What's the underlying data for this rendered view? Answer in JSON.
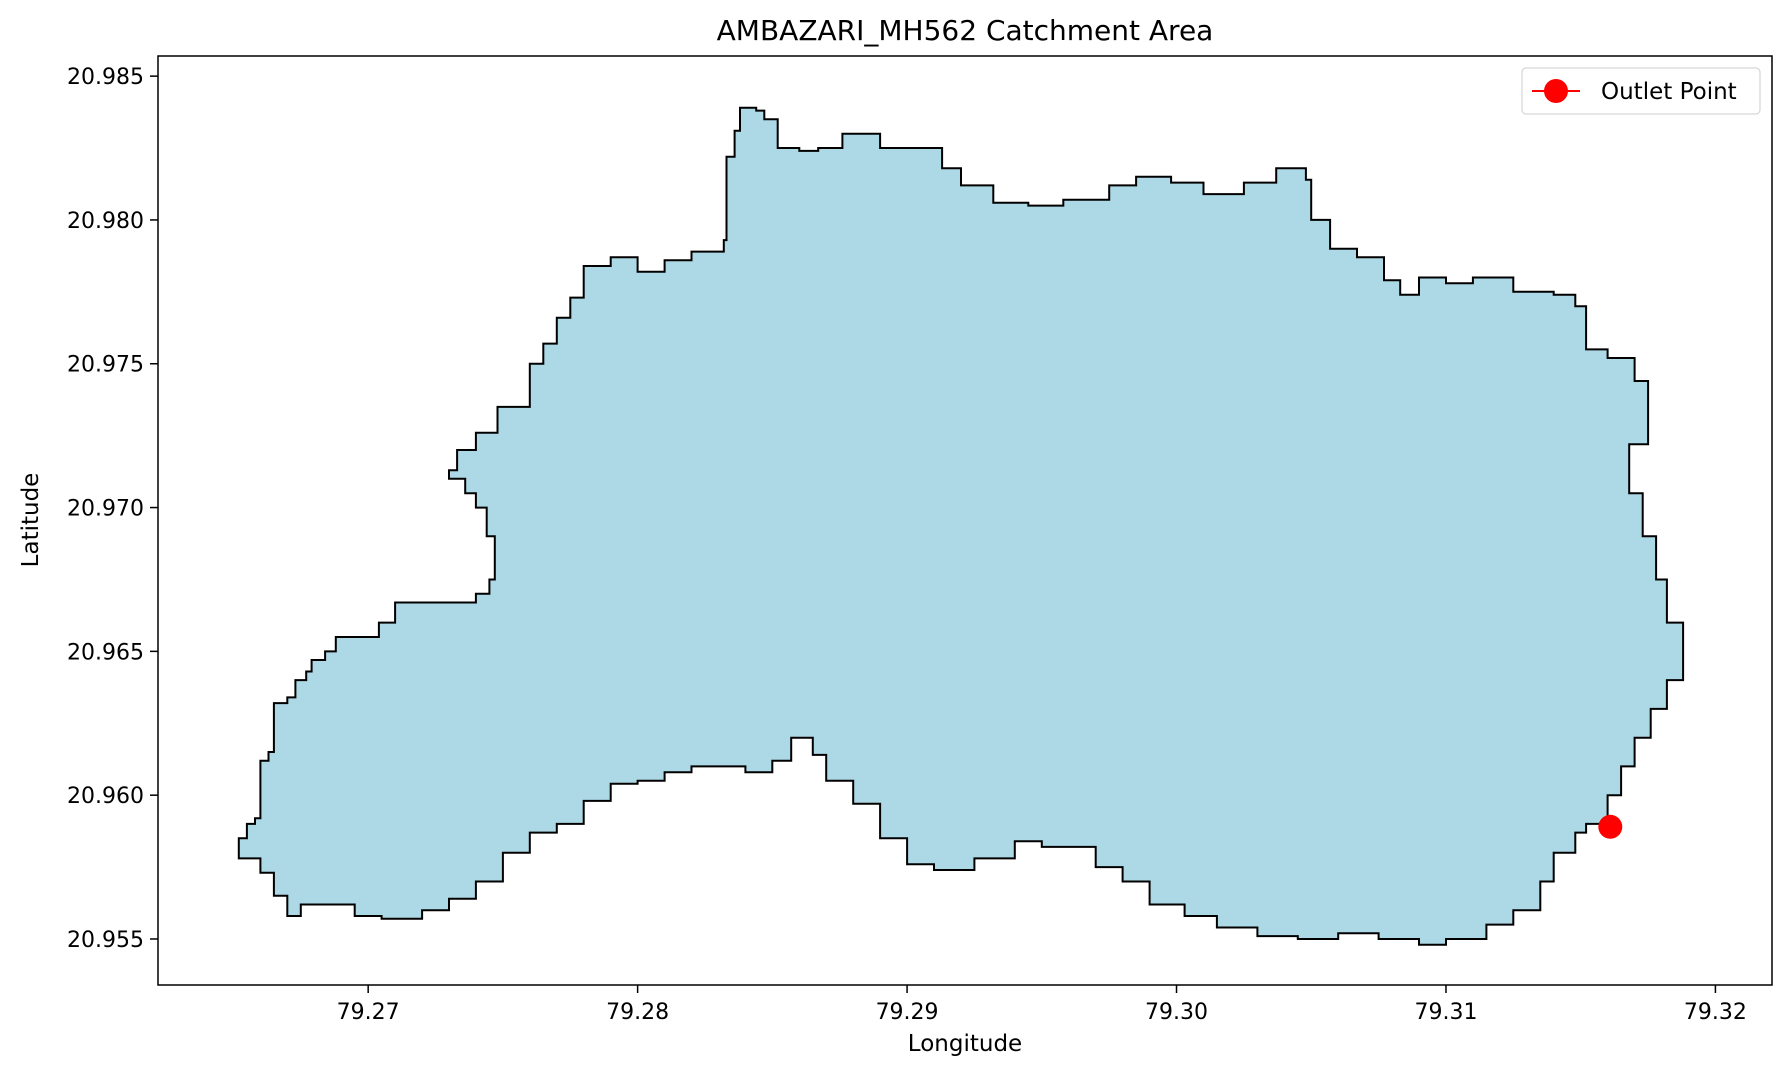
{
  "chart_data": {
    "type": "map",
    "title": "AMBAZARI_MH562 Catchment Area",
    "xlabel": "Longitude",
    "ylabel": "Latitude",
    "xlim": [
      79.2622,
      79.3221
    ],
    "ylim": [
      20.9534,
      20.9857
    ],
    "xticks": [
      79.27,
      79.28,
      79.29,
      79.3,
      79.31,
      79.32
    ],
    "xtick_labels": [
      "79.27",
      "79.28",
      "79.29",
      "79.30",
      "79.31",
      "79.32"
    ],
    "yticks": [
      20.955,
      20.96,
      20.965,
      20.97,
      20.975,
      20.98,
      20.985
    ],
    "ytick_labels": [
      "20.955",
      "20.960",
      "20.965",
      "20.970",
      "20.975",
      "20.980",
      "20.985"
    ],
    "grid": false,
    "legend_position": "top-right",
    "catchment": {
      "fill_color": "#add8e6",
      "edge_color": "#000000",
      "boundary": [
        [
          79.2652,
          20.9582
        ],
        [
          79.2652,
          20.9585
        ],
        [
          79.2655,
          20.9587
        ],
        [
          79.2655,
          20.959
        ],
        [
          79.2658,
          20.9592
        ],
        [
          79.266,
          20.9596
        ],
        [
          79.266,
          20.9612
        ],
        [
          79.2663,
          20.9615
        ],
        [
          79.2665,
          20.9616
        ],
        [
          79.2665,
          20.9632
        ],
        [
          79.267,
          20.9634
        ],
        [
          79.2673,
          20.964
        ],
        [
          79.2677,
          20.9643
        ],
        [
          79.2679,
          20.9647
        ],
        [
          79.2684,
          20.965
        ],
        [
          79.2688,
          20.9655
        ],
        [
          79.2699,
          20.9655
        ],
        [
          79.2704,
          20.966
        ],
        [
          79.271,
          20.9667
        ],
        [
          79.274,
          20.967
        ],
        [
          79.2745,
          20.9675
        ],
        [
          79.2747,
          20.9682
        ],
        [
          79.2747,
          20.969
        ],
        [
          79.2744,
          20.97
        ],
        [
          79.274,
          20.9705
        ],
        [
          79.2736,
          20.971
        ],
        [
          79.273,
          20.9713
        ],
        [
          79.2733,
          20.972
        ],
        [
          79.274,
          20.9726
        ],
        [
          79.2748,
          20.9735
        ],
        [
          79.276,
          20.975
        ],
        [
          79.2765,
          20.9757
        ],
        [
          79.277,
          20.9766
        ],
        [
          79.2775,
          20.9773
        ],
        [
          79.278,
          20.9784
        ],
        [
          79.279,
          20.9787
        ],
        [
          79.28,
          20.9782
        ],
        [
          79.281,
          20.9786
        ],
        [
          79.282,
          20.9789
        ],
        [
          79.2832,
          20.9793
        ],
        [
          79.2833,
          20.98
        ],
        [
          79.2833,
          20.9822
        ],
        [
          79.2836,
          20.9831
        ],
        [
          79.2838,
          20.9839
        ],
        [
          79.2844,
          20.9838
        ],
        [
          79.2847,
          20.9835
        ],
        [
          79.2852,
          20.9825
        ],
        [
          79.286,
          20.9824
        ],
        [
          79.2867,
          20.9825
        ],
        [
          79.2876,
          20.983
        ],
        [
          79.289,
          20.9825
        ],
        [
          79.2902,
          20.9825
        ],
        [
          79.2913,
          20.9818
        ],
        [
          79.292,
          20.9812
        ],
        [
          79.2932,
          20.9806
        ],
        [
          79.2945,
          20.9805
        ],
        [
          79.2958,
          20.9807
        ],
        [
          79.2975,
          20.9812
        ],
        [
          79.2985,
          20.9815
        ],
        [
          79.2998,
          20.9813
        ],
        [
          79.301,
          20.9809
        ],
        [
          79.3025,
          20.9813
        ],
        [
          79.3037,
          20.9818
        ],
        [
          79.3048,
          20.9814
        ],
        [
          79.305,
          20.98
        ],
        [
          79.3057,
          20.979
        ],
        [
          79.3067,
          20.9787
        ],
        [
          79.3077,
          20.9779
        ],
        [
          79.3083,
          20.9774
        ],
        [
          79.309,
          20.978
        ],
        [
          79.31,
          20.9778
        ],
        [
          79.311,
          20.978
        ],
        [
          79.3125,
          20.9775
        ],
        [
          79.314,
          20.9774
        ],
        [
          79.3148,
          20.977
        ],
        [
          79.3152,
          20.9755
        ],
        [
          79.316,
          20.9752
        ],
        [
          79.317,
          20.9744
        ],
        [
          79.3175,
          20.9735
        ],
        [
          79.3175,
          20.9722
        ],
        [
          79.3168,
          20.9715
        ],
        [
          79.3168,
          20.9705
        ],
        [
          79.3173,
          20.969
        ],
        [
          79.3178,
          20.9675
        ],
        [
          79.3182,
          20.966
        ],
        [
          79.3188,
          20.965
        ],
        [
          79.3188,
          20.964
        ],
        [
          79.3182,
          20.963
        ],
        [
          79.3176,
          20.962
        ],
        [
          79.317,
          20.961
        ],
        [
          79.3165,
          20.96
        ],
        [
          79.316,
          20.959
        ],
        [
          79.3152,
          20.9587
        ],
        [
          79.3148,
          20.958
        ],
        [
          79.314,
          20.957
        ],
        [
          79.3135,
          20.956
        ],
        [
          79.3125,
          20.9555
        ],
        [
          79.3115,
          20.955
        ],
        [
          79.31,
          20.9548
        ],
        [
          79.309,
          20.955
        ],
        [
          79.3075,
          20.9552
        ],
        [
          79.306,
          20.955
        ],
        [
          79.3045,
          20.9551
        ],
        [
          79.303,
          20.9554
        ],
        [
          79.3015,
          20.9558
        ],
        [
          79.3003,
          20.9562
        ],
        [
          79.299,
          20.957
        ],
        [
          79.298,
          20.9575
        ],
        [
          79.297,
          20.9582
        ],
        [
          79.296,
          20.9582
        ],
        [
          79.295,
          20.9584
        ],
        [
          79.294,
          20.9578
        ],
        [
          79.2925,
          20.9574
        ],
        [
          79.291,
          20.9576
        ],
        [
          79.29,
          20.9585
        ],
        [
          79.289,
          20.9597
        ],
        [
          79.288,
          20.9605
        ],
        [
          79.287,
          20.9614
        ],
        [
          79.2865,
          20.962
        ],
        [
          79.2857,
          20.9612
        ],
        [
          79.285,
          20.9608
        ],
        [
          79.284,
          20.961
        ],
        [
          79.283,
          20.961
        ],
        [
          79.282,
          20.9608
        ],
        [
          79.281,
          20.9605
        ],
        [
          79.28,
          20.9604
        ],
        [
          79.279,
          20.9598
        ],
        [
          79.278,
          20.959
        ],
        [
          79.277,
          20.9587
        ],
        [
          79.276,
          20.958
        ],
        [
          79.275,
          20.957
        ],
        [
          79.274,
          20.9564
        ],
        [
          79.273,
          20.956
        ],
        [
          79.272,
          20.9557
        ],
        [
          79.2705,
          20.9558
        ],
        [
          79.2695,
          20.9562
        ],
        [
          79.2685,
          20.9562
        ],
        [
          79.2675,
          20.9558
        ],
        [
          79.267,
          20.9565
        ],
        [
          79.2665,
          20.9573
        ],
        [
          79.266,
          20.9578
        ]
      ]
    },
    "series": [
      {
        "name": "Outlet Point",
        "type": "point",
        "color": "#ff0000",
        "x": [
          79.3161
        ],
        "y": [
          20.9589
        ]
      }
    ]
  }
}
